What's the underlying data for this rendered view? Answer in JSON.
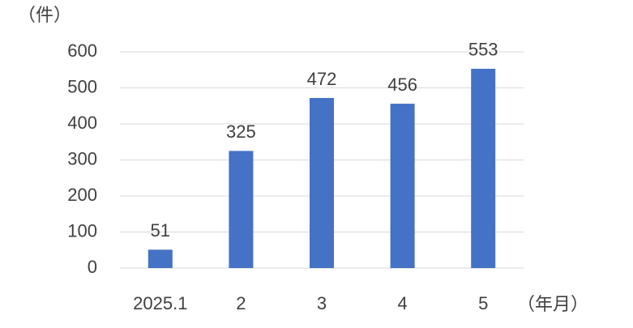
{
  "chart_data": {
    "type": "bar",
    "y_label": "（件）",
    "x_label": "（年月）",
    "categories": [
      "2025.1",
      "2",
      "3",
      "4",
      "5"
    ],
    "values": [
      51,
      325,
      472,
      456,
      553
    ],
    "color": "#4472c4",
    "ylim": [
      0,
      600
    ],
    "yticks": [
      0,
      100,
      200,
      300,
      400,
      500,
      600
    ],
    "grid": true,
    "data_labels": true
  }
}
